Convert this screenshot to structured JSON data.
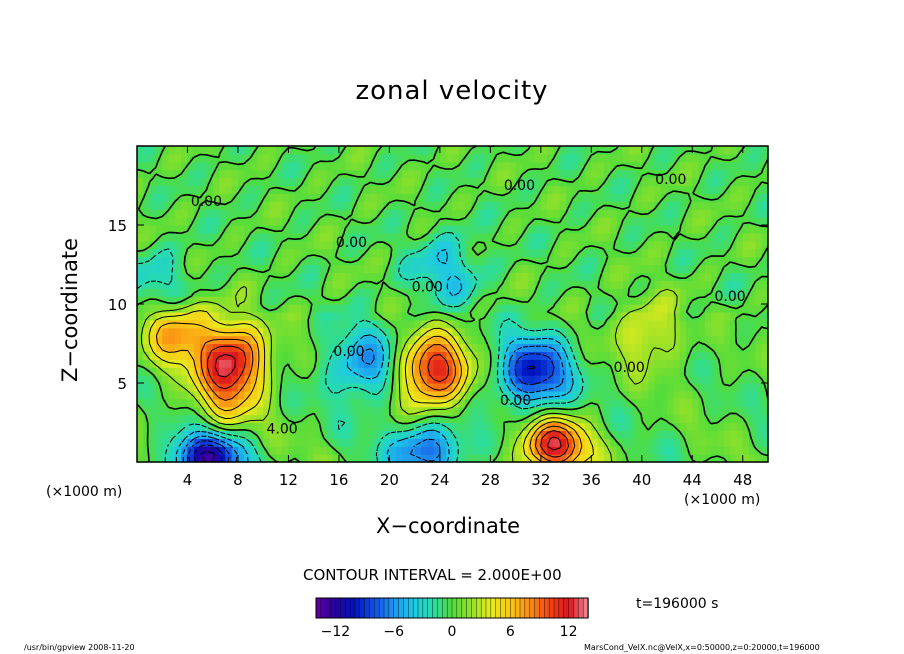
{
  "chart_data": {
    "type": "heatmap",
    "title": "zonal velocity",
    "xlabel": "X−coordinate",
    "ylabel": "Z−coordinate",
    "x_unit_left": "(×1000 m)",
    "x_unit_right": "(×1000 m)",
    "xlim": [
      0,
      50
    ],
    "ylim": [
      0,
      20
    ],
    "xticks": [
      4,
      8,
      12,
      16,
      20,
      24,
      28,
      32,
      36,
      40,
      44,
      48
    ],
    "yticks": [
      5,
      10,
      15
    ],
    "contour_interval_text": "CONTOUR INTERVAL = 2.000E+00",
    "contour_labels": [
      {
        "text": "0.00",
        "x": 5.5,
        "y": 16.2
      },
      {
        "text": "0.00",
        "x": 30.3,
        "y": 17.2
      },
      {
        "text": "0.00",
        "x": 42.3,
        "y": 17.6
      },
      {
        "text": "0.00",
        "x": 17.0,
        "y": 13.6
      },
      {
        "text": "0.00",
        "x": 23.0,
        "y": 10.8
      },
      {
        "text": "0.00",
        "x": 47.0,
        "y": 10.2
      },
      {
        "text": "0.00",
        "x": 16.8,
        "y": 6.7
      },
      {
        "text": "0.00",
        "x": 39.0,
        "y": 5.7
      },
      {
        "text": "0.00",
        "x": 30.0,
        "y": 3.6
      },
      {
        "text": "4.00",
        "x": 11.5,
        "y": 1.8
      }
    ],
    "features": [
      {
        "kind": "max",
        "x": 23.5,
        "y": 5.8,
        "value": 12
      },
      {
        "kind": "max",
        "x": 33.0,
        "y": 1.0,
        "value": 12
      },
      {
        "kind": "max",
        "x": 7.5,
        "y": 6.5,
        "value": 12
      },
      {
        "kind": "max",
        "x": 3.0,
        "y": 8.5,
        "value": 8
      },
      {
        "kind": "max",
        "x": 40.5,
        "y": 8.2,
        "value": 4
      },
      {
        "kind": "max",
        "x": 7.0,
        "y": 3.8,
        "value": 4
      },
      {
        "kind": "min",
        "x": 31.5,
        "y": 5.7,
        "value": -10
      },
      {
        "kind": "min",
        "x": 5.5,
        "y": 0.3,
        "value": -12
      },
      {
        "kind": "min",
        "x": 23.0,
        "y": 0.8,
        "value": -8
      },
      {
        "kind": "min",
        "x": 18.0,
        "y": 6.2,
        "value": -6
      },
      {
        "kind": "min",
        "x": 2.0,
        "y": 10.8,
        "value": -4
      },
      {
        "kind": "min",
        "x": 24.5,
        "y": 12.2,
        "value": -4
      }
    ],
    "colorbar": {
      "range": [
        -14,
        14
      ],
      "ticks": [
        -12,
        -6,
        0,
        6,
        12
      ],
      "tick_labels": [
        "−12",
        "−6",
        "0",
        "6",
        "12"
      ]
    },
    "time_label": "t=196000 s"
  },
  "footer": {
    "left": "/usr/bin/gpview  2008-11-20",
    "right": "MarsCond_VelX.nc@VelX,x=0:50000,z=0:20000,t=196000"
  }
}
